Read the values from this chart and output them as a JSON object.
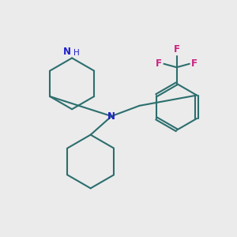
{
  "background_color": "#ebebeb",
  "bond_color": "#2d6e6e",
  "N_color": "#2020cc",
  "F_color": "#cc2080",
  "bond_width": 1.5,
  "fig_size": [
    3.0,
    3.0
  ],
  "dpi": 100,
  "xlim": [
    0,
    10
  ],
  "ylim": [
    0,
    10
  ]
}
